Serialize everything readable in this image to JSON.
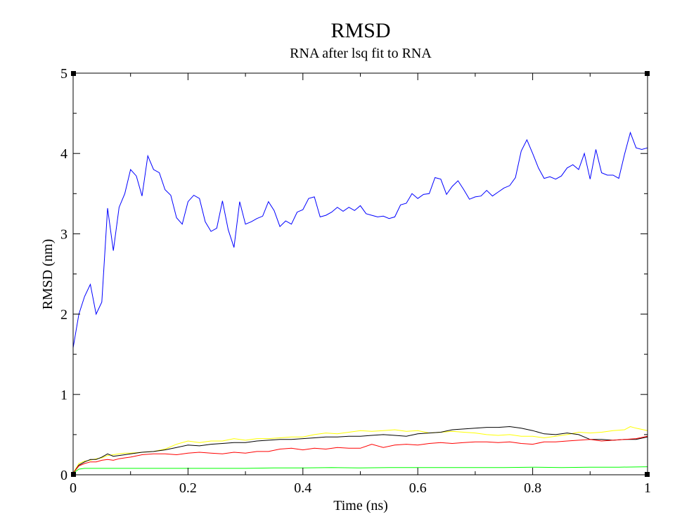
{
  "chart_data": {
    "type": "line",
    "title": "RMSD",
    "subtitle": "RNA after lsq fit to RNA",
    "xlabel": "Time (ns)",
    "ylabel": "RMSD (nm)",
    "xlim": [
      0,
      1
    ],
    "ylim": [
      0,
      5
    ],
    "x_ticks": [
      "0",
      "0.2",
      "0.4",
      "0.6",
      "0.8",
      "1"
    ],
    "y_ticks": [
      "0",
      "1",
      "2",
      "3",
      "4",
      "5"
    ],
    "grid": false,
    "legend": "none",
    "colors": {
      "black": "#000000",
      "red": "#ff0000",
      "green": "#00ff00",
      "blue": "#0000ff",
      "yellow": "#ffff00"
    },
    "series": [
      {
        "color": "#0000ff",
        "points": [
          [
            0,
            1.58
          ],
          [
            0.01,
            2.0
          ],
          [
            0.02,
            2.22
          ],
          [
            0.03,
            2.37
          ],
          [
            0.04,
            2.0
          ],
          [
            0.05,
            2.15
          ],
          [
            0.06,
            3.32
          ],
          [
            0.07,
            2.79
          ],
          [
            0.08,
            3.33
          ],
          [
            0.09,
            3.5
          ],
          [
            0.1,
            3.8
          ],
          [
            0.11,
            3.72
          ],
          [
            0.12,
            3.47
          ],
          [
            0.13,
            3.97
          ],
          [
            0.14,
            3.8
          ],
          [
            0.15,
            3.76
          ],
          [
            0.16,
            3.55
          ],
          [
            0.17,
            3.48
          ],
          [
            0.18,
            3.2
          ],
          [
            0.19,
            3.12
          ],
          [
            0.2,
            3.4
          ],
          [
            0.21,
            3.48
          ],
          [
            0.22,
            3.44
          ],
          [
            0.23,
            3.15
          ],
          [
            0.24,
            3.03
          ],
          [
            0.25,
            3.07
          ],
          [
            0.26,
            3.41
          ],
          [
            0.27,
            3.05
          ],
          [
            0.28,
            2.83
          ],
          [
            0.29,
            3.4
          ],
          [
            0.3,
            3.12
          ],
          [
            0.31,
            3.15
          ],
          [
            0.32,
            3.19
          ],
          [
            0.33,
            3.22
          ],
          [
            0.34,
            3.4
          ],
          [
            0.35,
            3.29
          ],
          [
            0.36,
            3.09
          ],
          [
            0.37,
            3.16
          ],
          [
            0.38,
            3.12
          ],
          [
            0.39,
            3.27
          ],
          [
            0.4,
            3.3
          ],
          [
            0.41,
            3.44
          ],
          [
            0.42,
            3.46
          ],
          [
            0.43,
            3.21
          ],
          [
            0.44,
            3.23
          ],
          [
            0.45,
            3.27
          ],
          [
            0.46,
            3.33
          ],
          [
            0.47,
            3.28
          ],
          [
            0.48,
            3.33
          ],
          [
            0.49,
            3.29
          ],
          [
            0.5,
            3.35
          ],
          [
            0.51,
            3.25
          ],
          [
            0.52,
            3.23
          ],
          [
            0.53,
            3.21
          ],
          [
            0.54,
            3.22
          ],
          [
            0.55,
            3.19
          ],
          [
            0.56,
            3.21
          ],
          [
            0.57,
            3.36
          ],
          [
            0.58,
            3.38
          ],
          [
            0.59,
            3.5
          ],
          [
            0.6,
            3.44
          ],
          [
            0.61,
            3.49
          ],
          [
            0.62,
            3.5
          ],
          [
            0.63,
            3.7
          ],
          [
            0.64,
            3.68
          ],
          [
            0.65,
            3.49
          ],
          [
            0.66,
            3.59
          ],
          [
            0.67,
            3.66
          ],
          [
            0.68,
            3.55
          ],
          [
            0.69,
            3.43
          ],
          [
            0.7,
            3.46
          ],
          [
            0.71,
            3.47
          ],
          [
            0.72,
            3.54
          ],
          [
            0.73,
            3.47
          ],
          [
            0.74,
            3.52
          ],
          [
            0.75,
            3.57
          ],
          [
            0.76,
            3.6
          ],
          [
            0.77,
            3.7
          ],
          [
            0.78,
            4.03
          ],
          [
            0.79,
            4.17
          ],
          [
            0.8,
            4.0
          ],
          [
            0.81,
            3.82
          ],
          [
            0.82,
            3.69
          ],
          [
            0.83,
            3.71
          ],
          [
            0.84,
            3.68
          ],
          [
            0.85,
            3.72
          ],
          [
            0.86,
            3.82
          ],
          [
            0.87,
            3.86
          ],
          [
            0.88,
            3.8
          ],
          [
            0.89,
            4.0
          ],
          [
            0.9,
            3.68
          ],
          [
            0.91,
            4.05
          ],
          [
            0.92,
            3.76
          ],
          [
            0.93,
            3.73
          ],
          [
            0.94,
            3.73
          ],
          [
            0.95,
            3.69
          ],
          [
            0.96,
            3.99
          ],
          [
            0.97,
            4.26
          ],
          [
            0.98,
            4.07
          ],
          [
            0.99,
            4.05
          ],
          [
            1.0,
            4.07
          ]
        ]
      },
      {
        "color": "#ffff00",
        "points": [
          [
            0,
            0.02
          ],
          [
            0.01,
            0.14
          ],
          [
            0.02,
            0.17
          ],
          [
            0.03,
            0.18
          ],
          [
            0.04,
            0.2
          ],
          [
            0.05,
            0.21
          ],
          [
            0.06,
            0.24
          ],
          [
            0.07,
            0.25
          ],
          [
            0.08,
            0.26
          ],
          [
            0.09,
            0.27
          ],
          [
            0.1,
            0.27
          ],
          [
            0.12,
            0.28
          ],
          [
            0.14,
            0.29
          ],
          [
            0.16,
            0.32
          ],
          [
            0.18,
            0.38
          ],
          [
            0.2,
            0.42
          ],
          [
            0.22,
            0.4
          ],
          [
            0.24,
            0.42
          ],
          [
            0.26,
            0.42
          ],
          [
            0.28,
            0.45
          ],
          [
            0.3,
            0.43
          ],
          [
            0.32,
            0.45
          ],
          [
            0.34,
            0.45
          ],
          [
            0.36,
            0.46
          ],
          [
            0.38,
            0.47
          ],
          [
            0.4,
            0.47
          ],
          [
            0.42,
            0.5
          ],
          [
            0.44,
            0.52
          ],
          [
            0.46,
            0.51
          ],
          [
            0.48,
            0.53
          ],
          [
            0.5,
            0.55
          ],
          [
            0.52,
            0.54
          ],
          [
            0.54,
            0.55
          ],
          [
            0.56,
            0.56
          ],
          [
            0.58,
            0.54
          ],
          [
            0.6,
            0.55
          ],
          [
            0.62,
            0.52
          ],
          [
            0.64,
            0.53
          ],
          [
            0.66,
            0.54
          ],
          [
            0.68,
            0.53
          ],
          [
            0.7,
            0.52
          ],
          [
            0.72,
            0.5
          ],
          [
            0.74,
            0.49
          ],
          [
            0.76,
            0.5
          ],
          [
            0.78,
            0.48
          ],
          [
            0.8,
            0.48
          ],
          [
            0.82,
            0.46
          ],
          [
            0.84,
            0.48
          ],
          [
            0.86,
            0.5
          ],
          [
            0.88,
            0.53
          ],
          [
            0.9,
            0.52
          ],
          [
            0.92,
            0.53
          ],
          [
            0.94,
            0.55
          ],
          [
            0.96,
            0.56
          ],
          [
            0.97,
            0.6
          ],
          [
            0.98,
            0.58
          ],
          [
            1.0,
            0.55
          ]
        ]
      },
      {
        "color": "#000000",
        "points": [
          [
            0,
            0.02
          ],
          [
            0.01,
            0.12
          ],
          [
            0.02,
            0.16
          ],
          [
            0.03,
            0.19
          ],
          [
            0.04,
            0.19
          ],
          [
            0.05,
            0.22
          ],
          [
            0.06,
            0.26
          ],
          [
            0.07,
            0.23
          ],
          [
            0.08,
            0.24
          ],
          [
            0.09,
            0.25
          ],
          [
            0.1,
            0.26
          ],
          [
            0.12,
            0.28
          ],
          [
            0.14,
            0.29
          ],
          [
            0.16,
            0.31
          ],
          [
            0.18,
            0.34
          ],
          [
            0.2,
            0.37
          ],
          [
            0.22,
            0.36
          ],
          [
            0.24,
            0.38
          ],
          [
            0.26,
            0.39
          ],
          [
            0.28,
            0.4
          ],
          [
            0.3,
            0.4
          ],
          [
            0.32,
            0.42
          ],
          [
            0.34,
            0.43
          ],
          [
            0.36,
            0.44
          ],
          [
            0.38,
            0.44
          ],
          [
            0.4,
            0.45
          ],
          [
            0.42,
            0.46
          ],
          [
            0.44,
            0.47
          ],
          [
            0.46,
            0.47
          ],
          [
            0.48,
            0.48
          ],
          [
            0.5,
            0.48
          ],
          [
            0.52,
            0.49
          ],
          [
            0.54,
            0.5
          ],
          [
            0.56,
            0.49
          ],
          [
            0.58,
            0.48
          ],
          [
            0.6,
            0.51
          ],
          [
            0.62,
            0.52
          ],
          [
            0.64,
            0.53
          ],
          [
            0.66,
            0.56
          ],
          [
            0.68,
            0.57
          ],
          [
            0.7,
            0.58
          ],
          [
            0.72,
            0.59
          ],
          [
            0.74,
            0.59
          ],
          [
            0.76,
            0.6
          ],
          [
            0.78,
            0.58
          ],
          [
            0.8,
            0.55
          ],
          [
            0.82,
            0.51
          ],
          [
            0.84,
            0.5
          ],
          [
            0.86,
            0.52
          ],
          [
            0.88,
            0.5
          ],
          [
            0.9,
            0.44
          ],
          [
            0.92,
            0.44
          ],
          [
            0.94,
            0.43
          ],
          [
            0.96,
            0.44
          ],
          [
            0.98,
            0.44
          ],
          [
            1.0,
            0.47
          ]
        ]
      },
      {
        "color": "#ff0000",
        "points": [
          [
            0,
            0.02
          ],
          [
            0.01,
            0.11
          ],
          [
            0.02,
            0.14
          ],
          [
            0.03,
            0.16
          ],
          [
            0.04,
            0.16
          ],
          [
            0.05,
            0.18
          ],
          [
            0.06,
            0.19
          ],
          [
            0.07,
            0.18
          ],
          [
            0.08,
            0.2
          ],
          [
            0.09,
            0.21
          ],
          [
            0.1,
            0.22
          ],
          [
            0.12,
            0.25
          ],
          [
            0.14,
            0.26
          ],
          [
            0.16,
            0.26
          ],
          [
            0.18,
            0.25
          ],
          [
            0.2,
            0.27
          ],
          [
            0.22,
            0.28
          ],
          [
            0.24,
            0.27
          ],
          [
            0.26,
            0.26
          ],
          [
            0.28,
            0.28
          ],
          [
            0.3,
            0.27
          ],
          [
            0.32,
            0.29
          ],
          [
            0.34,
            0.29
          ],
          [
            0.36,
            0.32
          ],
          [
            0.38,
            0.33
          ],
          [
            0.4,
            0.31
          ],
          [
            0.42,
            0.33
          ],
          [
            0.44,
            0.32
          ],
          [
            0.46,
            0.34
          ],
          [
            0.48,
            0.33
          ],
          [
            0.5,
            0.33
          ],
          [
            0.52,
            0.38
          ],
          [
            0.54,
            0.34
          ],
          [
            0.56,
            0.37
          ],
          [
            0.58,
            0.38
          ],
          [
            0.6,
            0.37
          ],
          [
            0.62,
            0.39
          ],
          [
            0.64,
            0.4
          ],
          [
            0.66,
            0.39
          ],
          [
            0.68,
            0.4
          ],
          [
            0.7,
            0.41
          ],
          [
            0.72,
            0.41
          ],
          [
            0.74,
            0.4
          ],
          [
            0.76,
            0.41
          ],
          [
            0.78,
            0.39
          ],
          [
            0.8,
            0.38
          ],
          [
            0.82,
            0.41
          ],
          [
            0.84,
            0.41
          ],
          [
            0.86,
            0.42
          ],
          [
            0.88,
            0.43
          ],
          [
            0.9,
            0.44
          ],
          [
            0.92,
            0.42
          ],
          [
            0.94,
            0.43
          ],
          [
            0.96,
            0.44
          ],
          [
            0.98,
            0.45
          ],
          [
            1.0,
            0.48
          ]
        ]
      },
      {
        "color": "#00ff00",
        "points": [
          [
            0,
            0.02
          ],
          [
            0.01,
            0.07
          ],
          [
            0.02,
            0.08
          ],
          [
            0.04,
            0.08
          ],
          [
            0.06,
            0.08
          ],
          [
            0.1,
            0.08
          ],
          [
            0.15,
            0.08
          ],
          [
            0.2,
            0.08
          ],
          [
            0.25,
            0.08
          ],
          [
            0.3,
            0.08
          ],
          [
            0.35,
            0.085
          ],
          [
            0.4,
            0.085
          ],
          [
            0.45,
            0.09
          ],
          [
            0.5,
            0.085
          ],
          [
            0.55,
            0.09
          ],
          [
            0.6,
            0.09
          ],
          [
            0.65,
            0.09
          ],
          [
            0.7,
            0.09
          ],
          [
            0.75,
            0.09
          ],
          [
            0.8,
            0.095
          ],
          [
            0.85,
            0.09
          ],
          [
            0.9,
            0.095
          ],
          [
            0.95,
            0.095
          ],
          [
            1.0,
            0.1
          ]
        ]
      }
    ]
  }
}
